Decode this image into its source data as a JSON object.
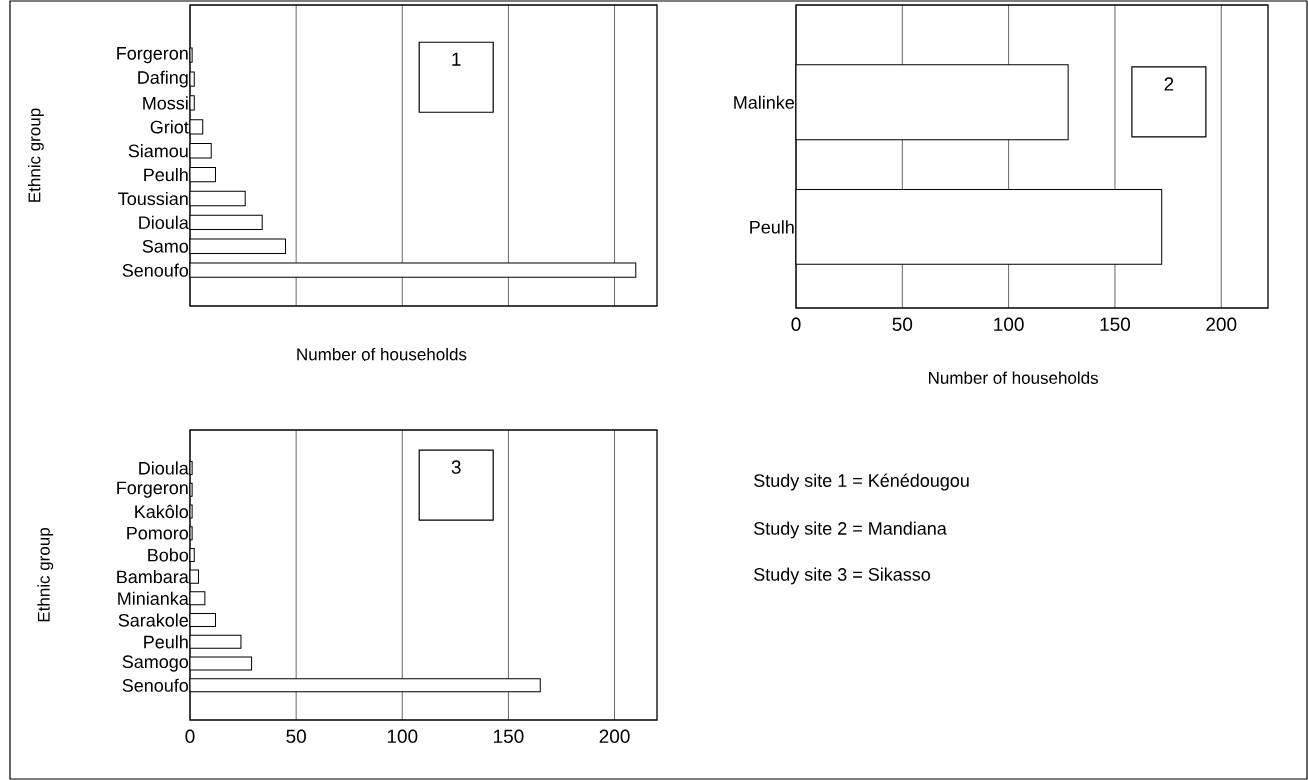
{
  "chart_data": [
    {
      "type": "bar",
      "orientation": "horizontal",
      "categories": [
        "Forgeron",
        "Dafing",
        "Mossi",
        "Griot",
        "Siamou",
        "Peulh",
        "Toussian",
        "Dioula",
        "Samo",
        "Senoufo"
      ],
      "values": [
        1,
        2,
        2,
        6,
        10,
        12,
        26,
        34,
        45,
        210
      ],
      "color": "#ffffff",
      "xlim": [
        0,
        220
      ],
      "xticks": [
        0,
        50,
        100,
        150,
        200
      ],
      "tick_labels": "y",
      "grid": "x",
      "xlabel": "Number of households",
      "ylabel": "Ethnic group",
      "annotations": [
        "1"
      ]
    },
    {
      "type": "bar",
      "orientation": "horizontal",
      "categories": [
        "Malinke",
        "Peulh"
      ],
      "values": [
        128,
        172
      ],
      "color": "#ffffff",
      "xlim": [
        0,
        222
      ],
      "xticks": [
        0,
        50,
        100,
        150,
        200
      ],
      "grid": "x",
      "xlabel": "Number of households",
      "annotations": [
        "2"
      ]
    },
    {
      "type": "bar",
      "orientation": "horizontal",
      "categories": [
        "Dioula",
        "Forgeron",
        "Kakôlo",
        "Pomoro",
        "Bobo",
        "Bambara",
        "Minianka",
        "Sarakole",
        "Peulh",
        "Samogo",
        "Senoufo"
      ],
      "values": [
        1,
        1,
        1,
        1,
        2,
        4,
        7,
        12,
        24,
        29,
        165
      ],
      "color": "#ffffff",
      "xlim": [
        0,
        220
      ],
      "xticks": [
        0,
        50,
        100,
        150,
        200
      ],
      "grid": "x",
      "ylabel": "Ethnic group",
      "annotations": [
        "3"
      ]
    },
    {
      "type": "other",
      "annotations": [
        "Study site 1 = Kénédougou",
        "Study site 2 = Mandiana",
        "Study site 3 = Sikasso"
      ]
    }
  ]
}
